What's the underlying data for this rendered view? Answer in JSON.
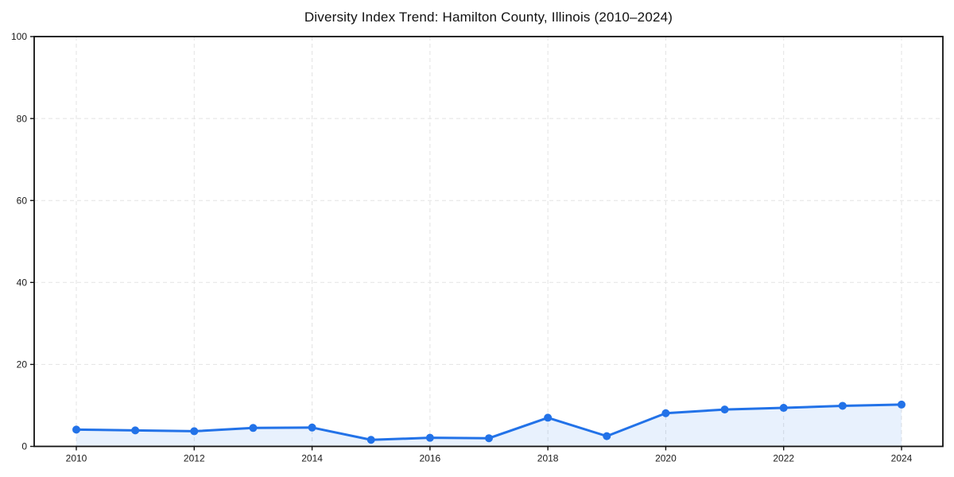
{
  "chart_data": {
    "type": "line",
    "title": "Diversity Index Trend: Hamilton County, Illinois (2010–2024)",
    "x": [
      2010,
      2011,
      2012,
      2013,
      2014,
      2015,
      2016,
      2017,
      2018,
      2019,
      2020,
      2021,
      2022,
      2023,
      2024
    ],
    "series": [
      {
        "name": "Diversity Index",
        "values": [
          4.1,
          3.9,
          3.7,
          4.5,
          4.6,
          1.6,
          2.1,
          2.0,
          7.0,
          2.5,
          8.1,
          9.0,
          9.4,
          9.9,
          10.2
        ]
      }
    ],
    "xlabel": "",
    "ylabel": "",
    "xlim": [
      2009.3,
      2024.7
    ],
    "ylim": [
      0,
      100
    ],
    "xticks": [
      2010,
      2012,
      2014,
      2016,
      2018,
      2020,
      2022,
      2024
    ],
    "yticks": [
      0,
      20,
      40,
      60,
      80,
      100
    ],
    "grid": "dashed, on labeled ticks only",
    "legend_position": "none",
    "colors": {
      "line": "#2272e8",
      "marker": "#2272e8",
      "area_fill": "rgba(34,114,232,0.10)",
      "grid": "#e3e3e3",
      "spine": "#111111",
      "tick_text": "#1a1a1a",
      "background": "#ffffff"
    },
    "marker_shape": "circle"
  }
}
